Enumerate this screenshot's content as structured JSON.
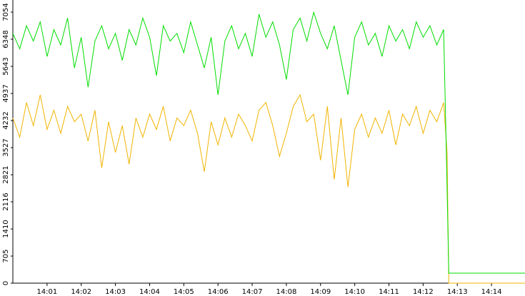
{
  "chart_data": {
    "type": "line",
    "x": [
      0,
      0.2,
      0.4,
      0.6,
      0.8,
      1,
      1.2,
      1.4,
      1.6,
      1.8,
      2,
      2.2,
      2.4,
      2.6,
      2.8,
      3,
      3.2,
      3.4,
      3.6,
      3.8,
      4,
      4.2,
      4.4,
      4.6,
      4.8,
      5,
      5.2,
      5.4,
      5.6,
      5.8,
      6,
      6.2,
      6.4,
      6.6,
      6.8,
      7,
      7.2,
      7.4,
      7.6,
      7.8,
      8,
      8.2,
      8.4,
      8.6,
      8.8,
      9,
      9.2,
      9.4,
      9.6,
      9.8,
      10,
      10.2,
      10.4,
      10.6,
      10.8,
      11,
      11.2,
      11.4,
      11.6,
      11.8,
      12,
      12.2,
      12.4,
      12.6,
      12.7,
      12.75,
      14.98
    ],
    "series": [
      {
        "color": "#00dd00",
        "values": [
          6500,
          6100,
          6700,
          6300,
          6800,
          5900,
          6600,
          6200,
          6900,
          5600,
          6400,
          5100,
          6300,
          6700,
          6100,
          6500,
          5800,
          6600,
          6200,
          6900,
          6400,
          5400,
          6700,
          6300,
          6500,
          6000,
          6800,
          6200,
          5600,
          6400,
          4900,
          6300,
          6700,
          6100,
          6500,
          5900,
          7000,
          6400,
          6800,
          6200,
          5300,
          6600,
          6900,
          6300,
          7050,
          6500,
          6100,
          6700,
          5800,
          4900,
          6400,
          6800,
          6200,
          6500,
          5900,
          6700,
          6300,
          6600,
          6100,
          6800,
          6400,
          6700,
          6200,
          6600,
          2500,
          260,
          260
        ]
      },
      {
        "color": "#f0b400",
        "values": [
          4300,
          3800,
          4700,
          4100,
          4900,
          4000,
          4500,
          3900,
          4600,
          4200,
          4400,
          3700,
          4500,
          3000,
          4200,
          3400,
          4100,
          3100,
          4300,
          3800,
          4400,
          4000,
          4600,
          3700,
          4300,
          4100,
          4500,
          3900,
          2900,
          4200,
          3600,
          4300,
          3800,
          4400,
          4100,
          3700,
          4500,
          4700,
          4100,
          3300,
          3900,
          4600,
          4900,
          4200,
          4400,
          3200,
          4600,
          2700,
          4300,
          2500,
          4000,
          4400,
          3800,
          4300,
          3900,
          4500,
          3600,
          4400,
          4100,
          4600,
          3900,
          4500,
          4200,
          4700,
          3400,
          0,
          0
        ]
      }
    ],
    "xlim": [
      0,
      14.98
    ],
    "xticks": [
      {
        "value": 1,
        "label": "14:01"
      },
      {
        "value": 2,
        "label": "14:02"
      },
      {
        "value": 3,
        "label": "14:03"
      },
      {
        "value": 4,
        "label": "14:04"
      },
      {
        "value": 5,
        "label": "14:05"
      },
      {
        "value": 6,
        "label": "14:06"
      },
      {
        "value": 7,
        "label": "14:07"
      },
      {
        "value": 8,
        "label": "14:08"
      },
      {
        "value": 9,
        "label": "14:09"
      },
      {
        "value": 10,
        "label": "14:10"
      },
      {
        "value": 11,
        "label": "14:11"
      },
      {
        "value": 12,
        "label": "14:12"
      },
      {
        "value": 13,
        "label": "14:13"
      },
      {
        "value": 14,
        "label": "14:14"
      }
    ],
    "ylim": [
      0,
      7054
    ],
    "yticks": [
      0,
      705,
      1410,
      2116,
      2821,
      3527,
      4232,
      4937,
      5643,
      6348,
      7054
    ]
  }
}
